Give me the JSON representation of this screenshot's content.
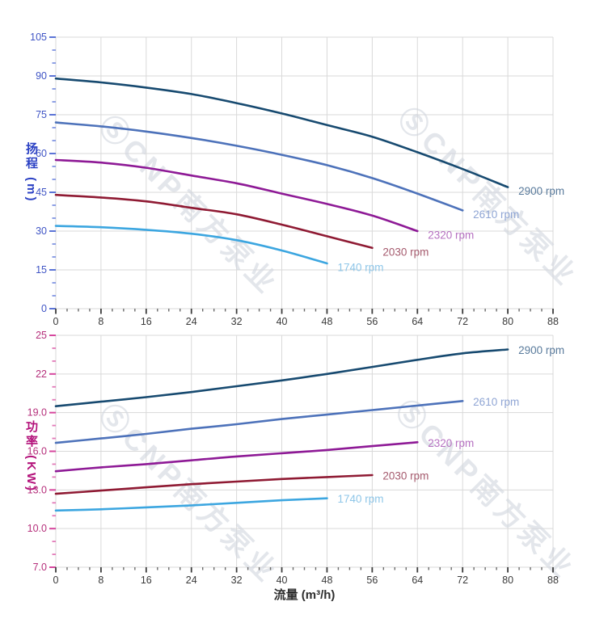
{
  "page": {
    "background": "#ffffff"
  },
  "watermark": {
    "icon": "cnp-logo-icon",
    "text": "CNP南方泵业",
    "color": "#d2d7de"
  },
  "chart_data": [
    {
      "type": "line",
      "title": "",
      "xlabel": "",
      "ylabel": "扬程 (m)",
      "xlim": [
        0,
        88
      ],
      "ylim": [
        0,
        105
      ],
      "x_major": 8,
      "x_minor": 2,
      "y_major": 15,
      "y_minor": 5,
      "grid": true,
      "x_tick_labels": [
        "0",
        "8",
        "16",
        "24",
        "32",
        "40",
        "48",
        "56",
        "64",
        "72",
        "80",
        "88"
      ],
      "y_tick_labels": [
        "0",
        "15",
        "30",
        "45",
        "60",
        "75",
        "90",
        "105"
      ],
      "y_label_color": "#4055c5",
      "y_tick_color": "#5b74d6",
      "y_minor_tick_color": "#8296e2",
      "series": [
        {
          "label": "2900 rpm",
          "rpm": 2900,
          "color": "#174a70",
          "label_color": "#5a7b9c",
          "x": [
            0,
            8,
            16,
            24,
            32,
            40,
            48,
            56,
            64,
            72,
            80
          ],
          "y": [
            89,
            87.5,
            85.5,
            83,
            79.5,
            75.5,
            71,
            66.5,
            60.5,
            54,
            47
          ]
        },
        {
          "label": "2610 rpm",
          "rpm": 2610,
          "color": "#4d72ba",
          "label_color": "#8fa5d4",
          "x": [
            0,
            8,
            16,
            24,
            32,
            40,
            48,
            56,
            64,
            72
          ],
          "y": [
            72,
            70.5,
            68.5,
            66,
            63,
            59.5,
            55.5,
            50.5,
            44.5,
            38
          ]
        },
        {
          "label": "2320 rpm",
          "rpm": 2320,
          "color": "#8e1a96",
          "label_color": "#b671c1",
          "x": [
            0,
            8,
            16,
            24,
            32,
            40,
            48,
            56,
            64
          ],
          "y": [
            57.5,
            56.5,
            54.5,
            51.5,
            48.5,
            44.5,
            40.5,
            36,
            30
          ]
        },
        {
          "label": "2030 rpm",
          "rpm": 2030,
          "color": "#8f1a33",
          "label_color": "#a55b6e",
          "x": [
            0,
            8,
            16,
            24,
            32,
            40,
            48,
            56
          ],
          "y": [
            44,
            43,
            41.5,
            39,
            36.5,
            32.5,
            28,
            23.5
          ]
        },
        {
          "label": "1740 rpm",
          "rpm": 1740,
          "color": "#3ca6e0",
          "label_color": "#8ec6e8",
          "x": [
            0,
            8,
            16,
            24,
            32,
            40,
            48
          ],
          "y": [
            32,
            31.5,
            30.5,
            29,
            26.5,
            22.5,
            17.5
          ]
        }
      ]
    },
    {
      "type": "line",
      "title": "",
      "xlabel": "流量 (m³/h)",
      "ylabel": "功率 (KW)",
      "xlim": [
        0,
        88
      ],
      "ylim": [
        7,
        25
      ],
      "x_major": 8,
      "x_minor": 2,
      "y_major": 3,
      "y_minor": 1,
      "grid": true,
      "x_tick_labels": [
        "0",
        "8",
        "16",
        "24",
        "32",
        "40",
        "48",
        "56",
        "64",
        "72",
        "80",
        "88"
      ],
      "y_tick_labels": [
        "7.0",
        "10.0",
        "13.0",
        "16.0",
        "19.0",
        "22",
        "25"
      ],
      "y_label_color": "#b52f7b",
      "y_tick_color": "#d6479e",
      "y_minor_tick_color": "#e27ab8",
      "series": [
        {
          "label": "2900 rpm",
          "rpm": 2900,
          "color": "#174a70",
          "label_color": "#5a7b9c",
          "x": [
            0,
            8,
            16,
            24,
            32,
            40,
            48,
            56,
            64,
            72,
            80
          ],
          "y": [
            19.5,
            19.85,
            20.2,
            20.6,
            21.05,
            21.5,
            22.0,
            22.55,
            23.1,
            23.6,
            23.9
          ]
        },
        {
          "label": "2610 rpm",
          "rpm": 2610,
          "color": "#4d72ba",
          "label_color": "#8fa5d4",
          "x": [
            0,
            8,
            16,
            24,
            32,
            40,
            48,
            56,
            64,
            72
          ],
          "y": [
            16.65,
            17.0,
            17.35,
            17.75,
            18.1,
            18.5,
            18.85,
            19.2,
            19.55,
            19.9
          ]
        },
        {
          "label": "2320 rpm",
          "rpm": 2320,
          "color": "#8e1a96",
          "label_color": "#b671c1",
          "x": [
            0,
            8,
            16,
            24,
            32,
            40,
            48,
            56,
            64
          ],
          "y": [
            14.45,
            14.75,
            15.0,
            15.3,
            15.6,
            15.85,
            16.1,
            16.4,
            16.7
          ]
        },
        {
          "label": "2030 rpm",
          "rpm": 2030,
          "color": "#8f1a33",
          "label_color": "#a55b6e",
          "x": [
            0,
            8,
            16,
            24,
            32,
            40,
            48,
            56
          ],
          "y": [
            12.7,
            12.95,
            13.2,
            13.45,
            13.65,
            13.85,
            14.0,
            14.15
          ]
        },
        {
          "label": "1740 rpm",
          "rpm": 1740,
          "color": "#3ca6e0",
          "label_color": "#8ec6e8",
          "x": [
            0,
            8,
            16,
            24,
            32,
            40,
            48
          ],
          "y": [
            11.4,
            11.5,
            11.65,
            11.8,
            12.0,
            12.2,
            12.35
          ]
        }
      ]
    }
  ],
  "x_axis_shared": {
    "tick_color": "#3d3d3d",
    "minor_tick_color": "#6b6b6b",
    "label_color": "#3a3a3a"
  }
}
